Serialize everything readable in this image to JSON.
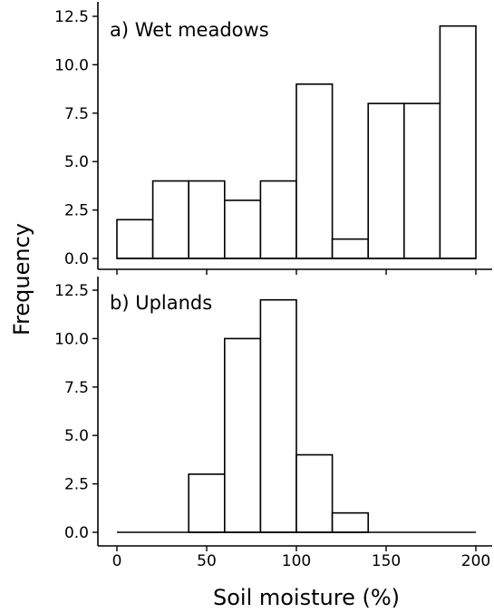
{
  "chart_data": {
    "type": "bar",
    "xlabel": "Soil moisture (%)",
    "ylabel": "Frequency",
    "bin_width": 20,
    "xlim": [
      0,
      200
    ],
    "x_ticks": [
      0,
      50,
      100,
      150,
      200
    ],
    "x_tick_labels": [
      "0",
      "50",
      "100",
      "150",
      "200"
    ],
    "ylim": [
      0,
      12.5
    ],
    "y_ticks": [
      0,
      2.5,
      5,
      7.5,
      10,
      12.5
    ],
    "y_tick_labels": [
      "0.0",
      "2.5",
      "5.0",
      "7.5",
      "10.0",
      "12.5"
    ],
    "bin_starts": [
      0,
      20,
      40,
      60,
      80,
      100,
      120,
      140,
      160,
      180
    ],
    "grid": false,
    "bar_fill": "#ffffff",
    "bar_stroke": "#000000",
    "panels": [
      {
        "title": "a) Wet meadows",
        "values": [
          2,
          4,
          4,
          3,
          4,
          9,
          1,
          8,
          8,
          12
        ]
      },
      {
        "title": "b) Uplands",
        "values": [
          0,
          0,
          3,
          10,
          12,
          4,
          1,
          0,
          0,
          0
        ]
      }
    ]
  }
}
